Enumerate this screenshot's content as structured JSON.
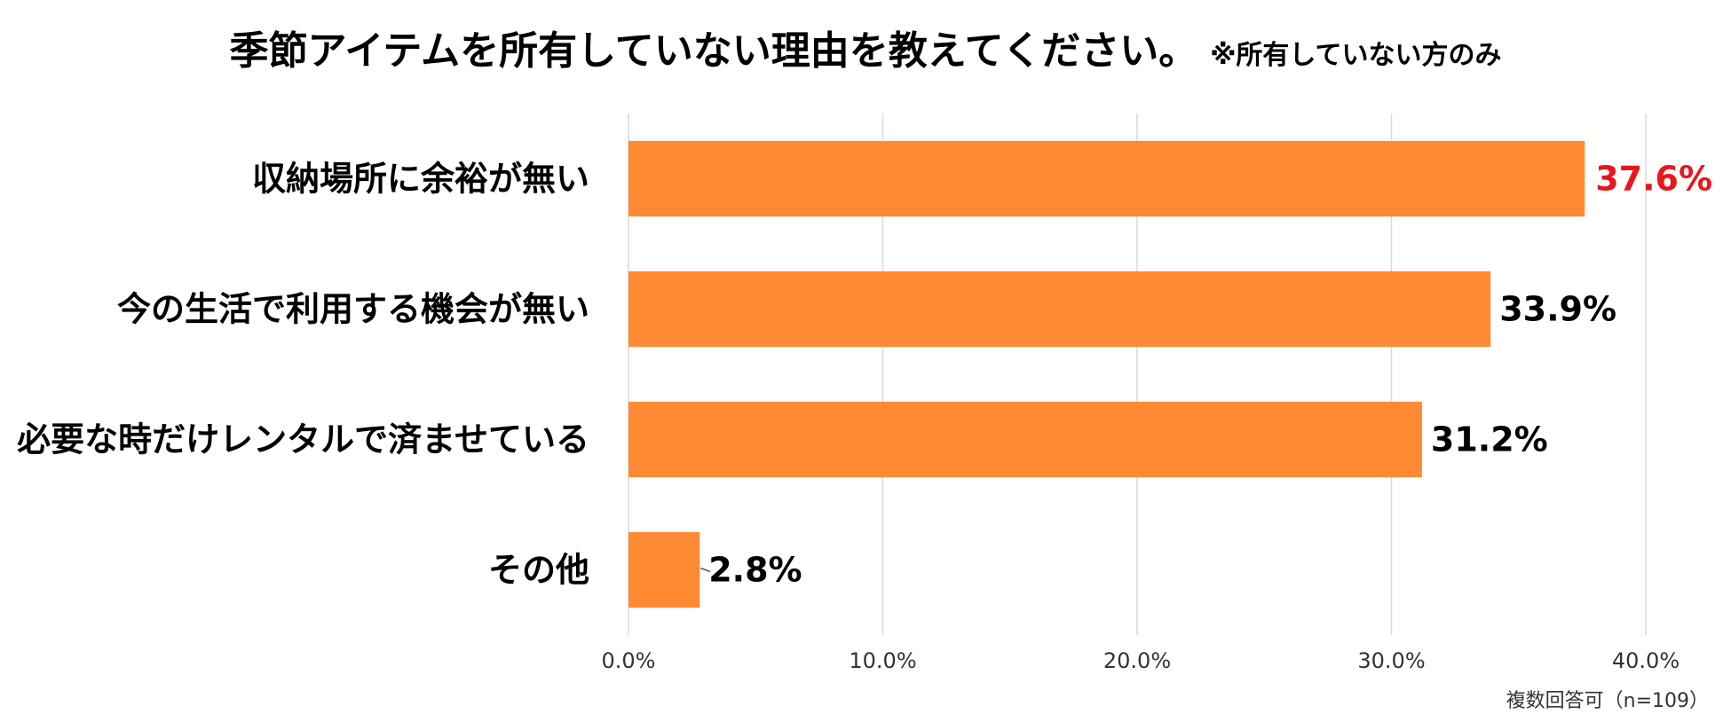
{
  "chart_data": {
    "type": "bar",
    "orientation": "horizontal",
    "title": "季節アイテムを所有していない理由を教えてください。",
    "subtitle": "※所有していない方のみ",
    "categories": [
      "収納場所に余裕が無い",
      "今の生活で利用する機会が無い",
      "必要な時だけレンタルで済ませている",
      "その他"
    ],
    "values": [
      37.6,
      33.9,
      31.2,
      2.8
    ],
    "value_labels": [
      "37.6%",
      "33.9%",
      "31.2%",
      "2.8%"
    ],
    "xlim": [
      0,
      40
    ],
    "ticks": [
      0,
      10,
      20,
      30,
      40
    ],
    "tick_labels": [
      "0.0%",
      "10.0%",
      "20.0%",
      "30.0%",
      "40.0%"
    ],
    "grid": true,
    "legend": "none",
    "note": "複数回答可（n=109）",
    "colors": {
      "bar": "#FF8A33",
      "highlight_label": "#E8161D",
      "label": "#000000",
      "grid": "#D9D9D9"
    }
  }
}
